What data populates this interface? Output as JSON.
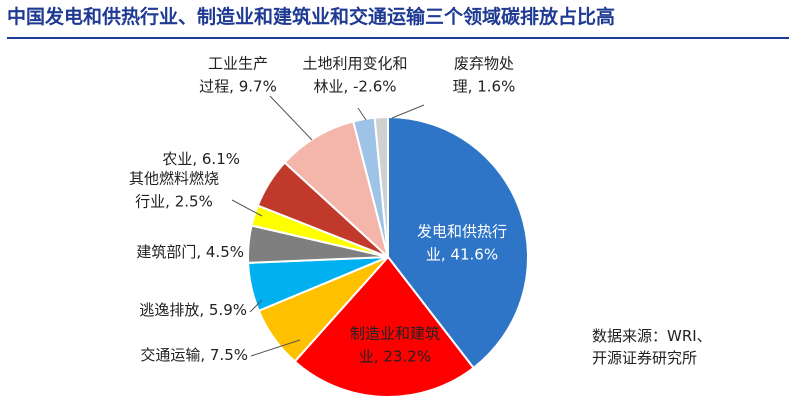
{
  "title": "中国发电和供热行业、制造业和建筑业和交通运输三个领域碳排放占比高",
  "source": {
    "line1": "数据来源：WRI、",
    "line2": "开源证券研究所"
  },
  "chart_data": {
    "type": "pie",
    "title": "中国发电和供热行业、制造业和建筑业和交通运输三个领域碳排放占比高",
    "slices": [
      {
        "label": [
          "发电和供热行",
          "业, 41.6%"
        ],
        "value": 41.6,
        "color": "#2e75c7",
        "text_color": "#ffffff"
      },
      {
        "label": [
          "制造业和建筑",
          "业, 23.2%"
        ],
        "value": 23.2,
        "color": "#ff0000",
        "text_color": "#222222"
      },
      {
        "label": [
          "交通运输, 7.5%"
        ],
        "value": 7.5,
        "color": "#ffc000",
        "text_color": "#222222"
      },
      {
        "label": [
          "逃逸排放, 5.9%"
        ],
        "value": 5.9,
        "color": "#00b0f0",
        "text_color": "#222222"
      },
      {
        "label": [
          "建筑部门, 4.5%"
        ],
        "value": 4.5,
        "color": "#7f7f7f",
        "text_color": "#222222"
      },
      {
        "label": [
          "其他燃料燃烧",
          "行业, 2.5%"
        ],
        "value": 2.5,
        "color": "#ffff00",
        "text_color": "#222222"
      },
      {
        "label": [
          "农业, 6.1%"
        ],
        "value": 6.1,
        "color": "#c0392b",
        "text_color": "#222222"
      },
      {
        "label": [
          "工业生产",
          "过程, 9.7%"
        ],
        "value": 9.7,
        "color": "#f4b6aa",
        "text_color": "#222222"
      },
      {
        "label": [
          "土地利用变化和",
          "林业, -2.6%"
        ],
        "value": 2.6,
        "color": "#9dc3e6",
        "text_color": "#222222"
      },
      {
        "label": [
          "废弃物处",
          "理, 1.6%"
        ],
        "value": 1.6,
        "color": "#d0d0d0",
        "text_color": "#222222"
      }
    ]
  }
}
